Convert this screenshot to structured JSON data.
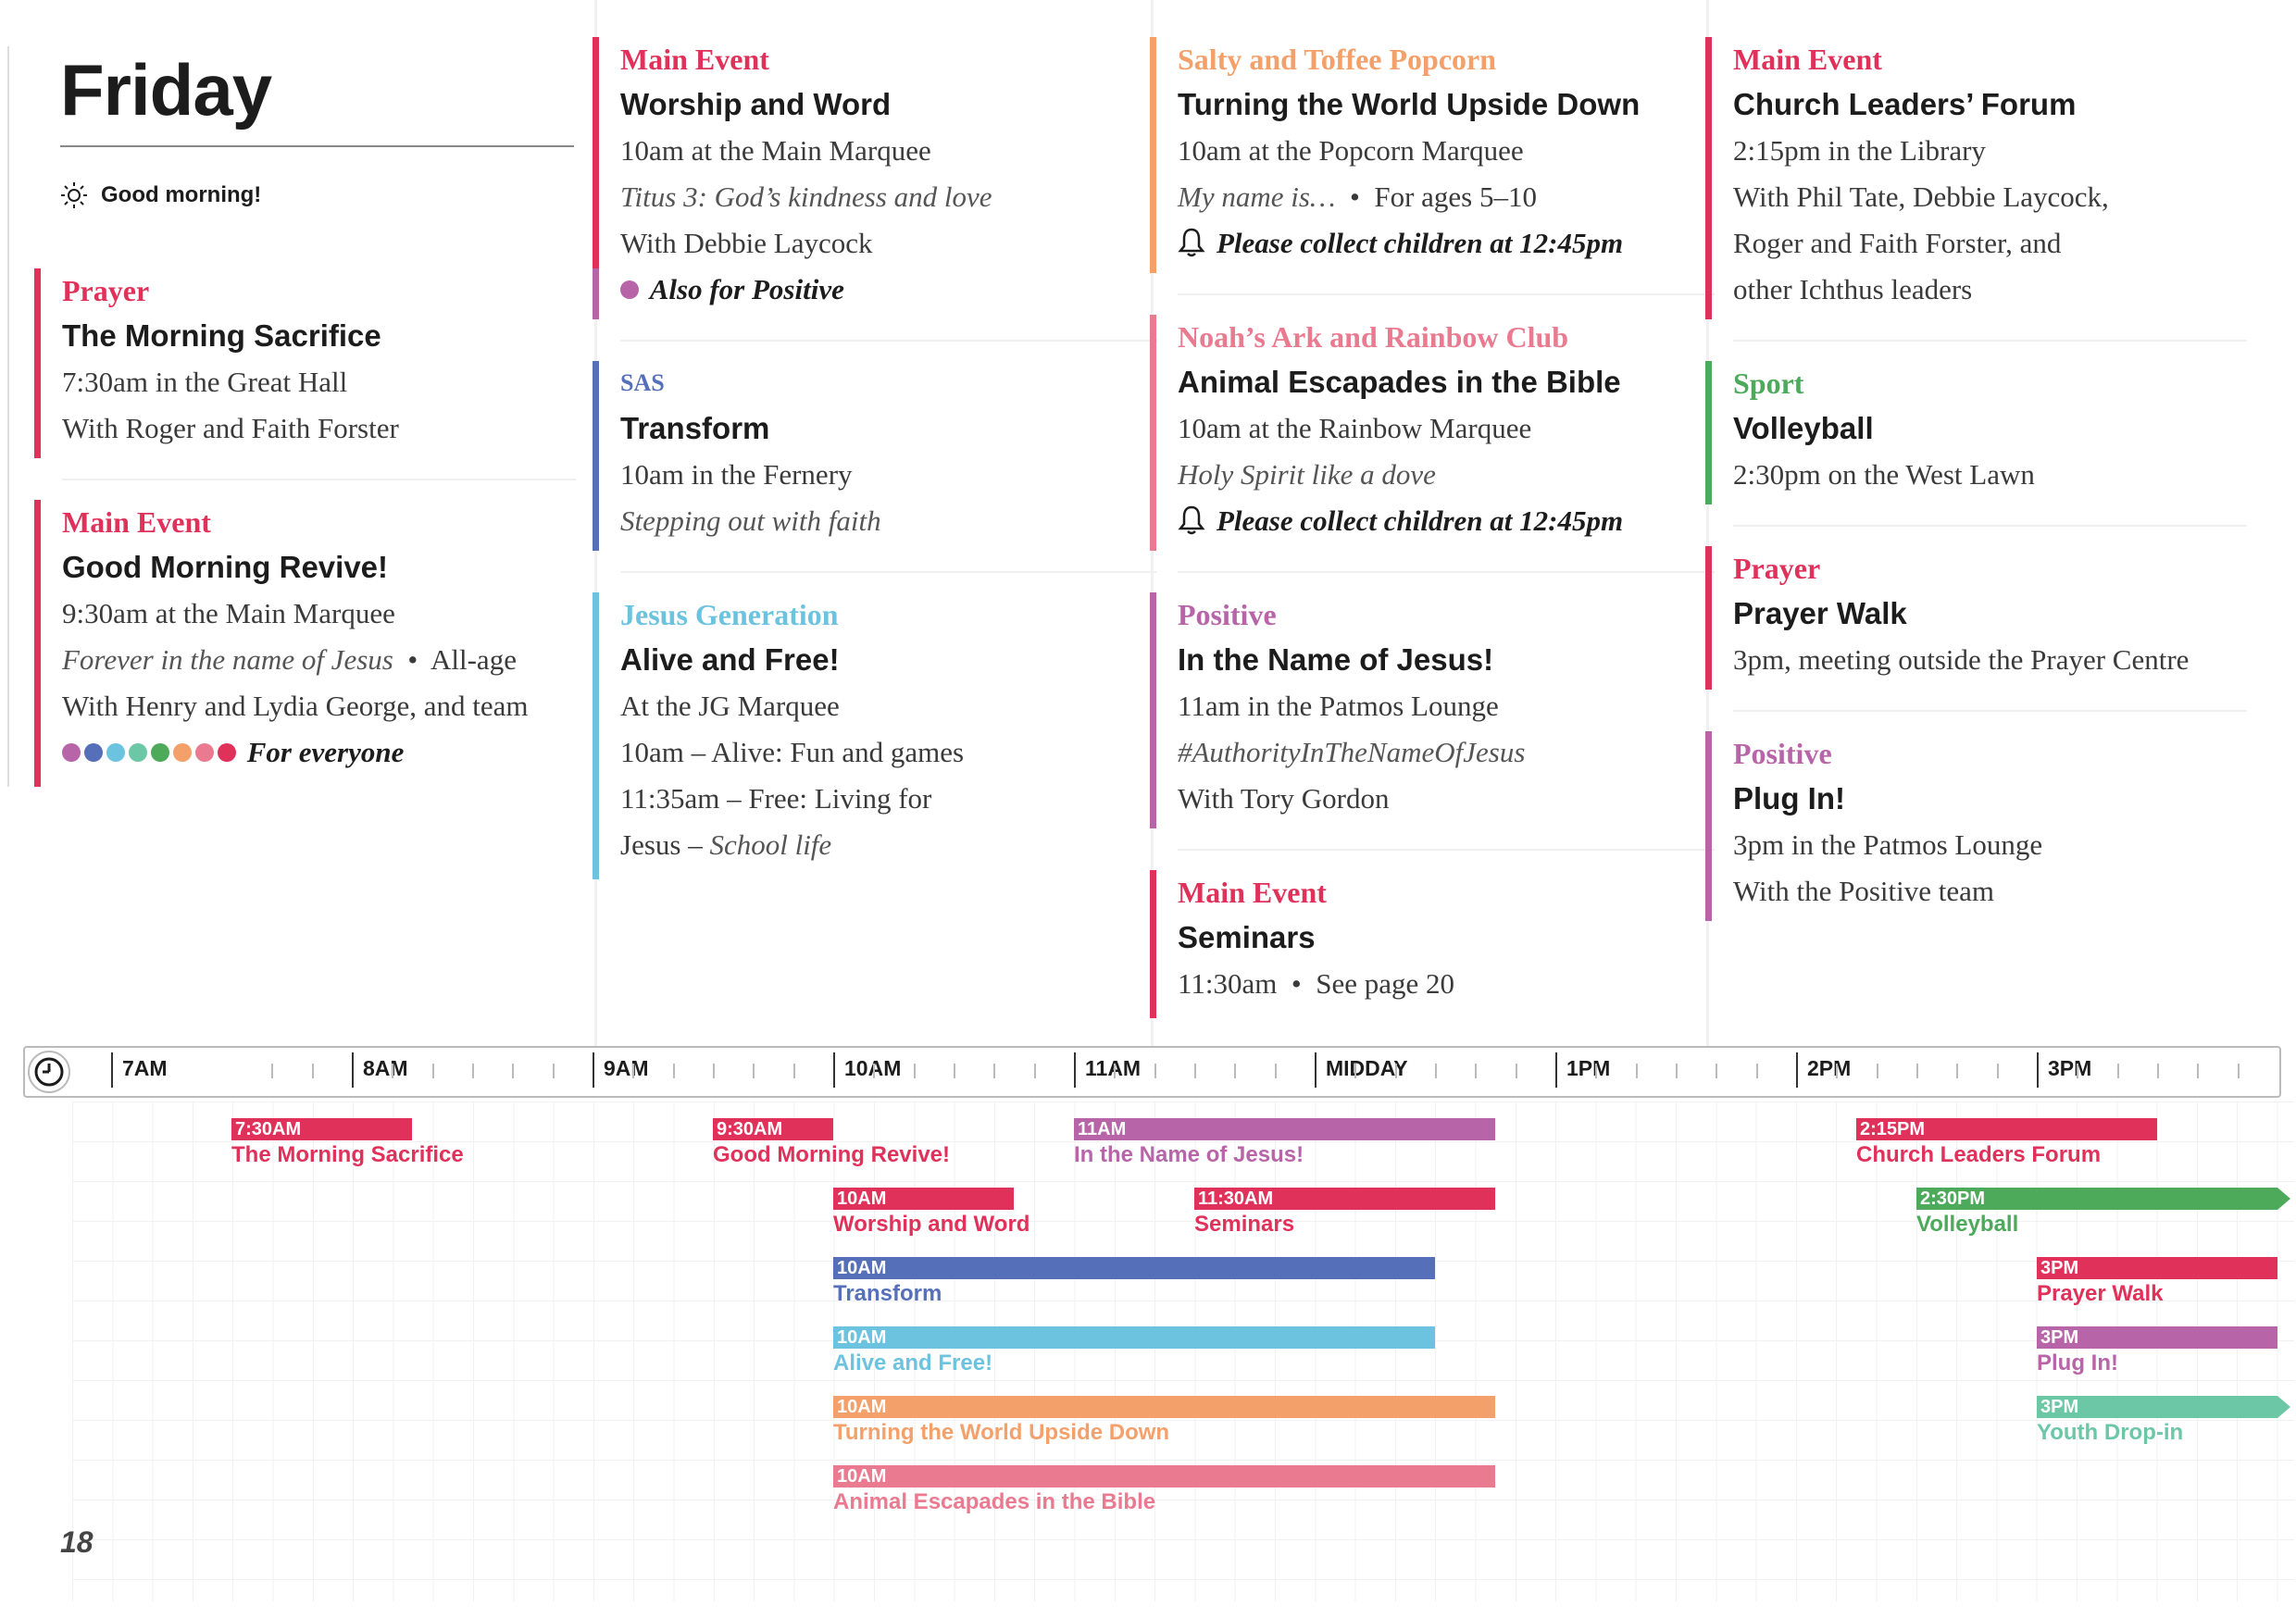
{
  "day": {
    "title": "Friday",
    "greeting": "Good morning!"
  },
  "colors": {
    "red": "#e0315a",
    "pink": "#ea7a90",
    "blue": "#5570b8",
    "lightblue": "#6cc3df",
    "orange": "#f3a06a",
    "purple": "#b764a8",
    "green": "#4caa5a",
    "teal": "#6cc7a7"
  },
  "col1": {
    "e1": {
      "cat": "Prayer",
      "title": "The Morning Sacrifice",
      "time": "7:30am",
      "where": "in the Great Hall",
      "with": "With Roger and Faith Forster"
    },
    "e2": {
      "cat": "Main Event",
      "title": "Good Morning Revive!",
      "time": "9:30am",
      "where": "at the Main Marquee",
      "theme": "Forever in the name of Jesus",
      "bullet": "•",
      "age": "All-age",
      "with": "With Henry and Lydia George, and team",
      "note": "For everyone"
    }
  },
  "col2": {
    "e1": {
      "cat": "Main Event",
      "title": "Worship and Word",
      "time": "10am",
      "where": "at the Main Marquee",
      "theme": "Titus 3: God’s kindness and love",
      "with": "With Debbie Laycock",
      "note": "Also for Positive"
    },
    "e2": {
      "cat": "SAS",
      "title": "Transform",
      "time": "10am",
      "where": "in the Fernery",
      "theme": "Stepping out with faith"
    },
    "e3": {
      "cat": "Jesus Generation",
      "title": "Alive and Free!",
      "where": "At the JG Marquee",
      "line2": "10am – Alive: Fun and games",
      "line3": "11:35am – Free: Living for",
      "line4a": "Jesus – ",
      "line4b": "School life"
    }
  },
  "col3": {
    "e1": {
      "cat": "Salty and Toffee Popcorn",
      "title": "Turning the World Upside Down",
      "time": "10am",
      "where": "at the Popcorn Marquee",
      "theme": "My name is…",
      "bullet": "•",
      "age": "For ages 5–10",
      "note": "Please collect children at 12:45pm"
    },
    "e2": {
      "cat": "Noah’s Ark and Rainbow Club",
      "title": "Animal Escapades in the Bible",
      "time": "10am",
      "where": "at the Rainbow Marquee",
      "theme": "Holy Spirit like a dove",
      "note": "Please collect children at 12:45pm"
    },
    "e3": {
      "cat": "Positive",
      "title": "In the Name of Jesus!",
      "time": "11am",
      "where": "in the Patmos Lounge",
      "theme": "#AuthorityInTheNameOfJesus",
      "with": "With Tory Gordon"
    },
    "e4": {
      "cat": "Main Event",
      "title": "Seminars",
      "time": "11:30am",
      "bullet": "•",
      "ref": "See page 20"
    }
  },
  "col4": {
    "e1": {
      "cat": "Main Event",
      "title": "Church Leaders’ Forum",
      "time": "2:15pm",
      "where": "in the Library",
      "l1": "With Phil Tate, Debbie Laycock,",
      "l2": "Roger and Faith Forster, and",
      "l3": "other Ichthus leaders"
    },
    "e2": {
      "cat": "Sport",
      "title": "Volleyball",
      "time": "2:30pm",
      "where": "on the West Lawn"
    },
    "e3": {
      "cat": "Prayer",
      "title": "Prayer Walk",
      "time": "3pm",
      "where": ", meeting outside the Prayer Centre"
    },
    "e4": {
      "cat": "Positive",
      "title": "Plug In!",
      "time": "3pm",
      "where": "in the Patmos Lounge",
      "with": "With the Positive team"
    }
  },
  "timeline": {
    "hours": [
      "7AM",
      "8AM",
      "9AM",
      "10AM",
      "11AM",
      "MIDDAY",
      "1PM",
      "2PM",
      "3PM"
    ],
    "items": [
      {
        "time": "7:30AM",
        "name": "The Morning Sacrifice",
        "color": "#e0315a"
      },
      {
        "time": "9:30AM",
        "name": "Good Morning Revive!",
        "color": "#e0315a"
      },
      {
        "time": "10AM",
        "name": "Worship and Word",
        "color": "#e0315a"
      },
      {
        "time": "10AM",
        "name": "Transform",
        "color": "#5570b8"
      },
      {
        "time": "10AM",
        "name": "Alive and Free!",
        "color": "#6cc3df"
      },
      {
        "time": "10AM",
        "name": "Turning the World Upside Down",
        "color": "#f3a06a"
      },
      {
        "time": "10AM",
        "name": "Animal Escapades in the Bible",
        "color": "#ea7a90"
      },
      {
        "time": "11AM",
        "name": "In the Name of Jesus!",
        "color": "#b764a8"
      },
      {
        "time": "11:30AM",
        "name": "Seminars",
        "color": "#e0315a"
      },
      {
        "time": "2:15PM",
        "name": "Church Leaders Forum",
        "color": "#e0315a"
      },
      {
        "time": "2:30PM",
        "name": "Volleyball",
        "color": "#4caa5a"
      },
      {
        "time": "3PM",
        "name": "Prayer Walk",
        "color": "#e0315a"
      },
      {
        "time": "3PM",
        "name": "Plug In!",
        "color": "#b764a8"
      },
      {
        "time": "3PM",
        "name": "Youth Drop-in",
        "color": "#6cc7a7"
      }
    ]
  },
  "page_number": "18"
}
